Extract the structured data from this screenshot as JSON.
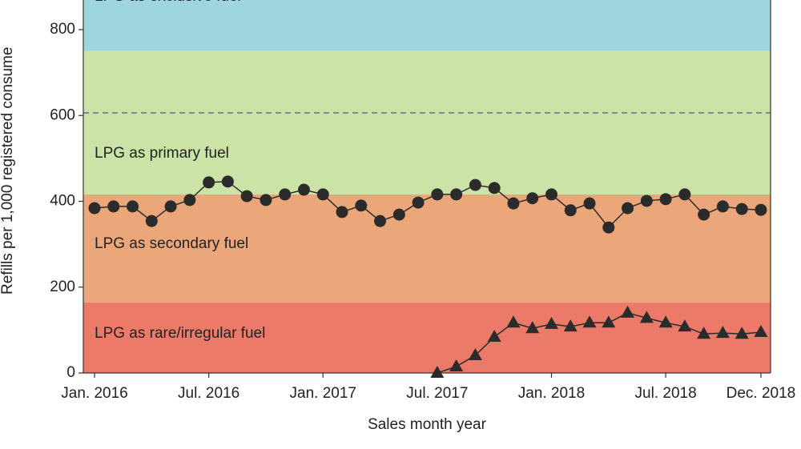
{
  "chart_data": {
    "type": "line",
    "x_label": "Sales month year",
    "y_label": "Refills per 1,000 registered consume",
    "categories": [
      "Jan. 2016",
      null,
      null,
      null,
      null,
      null,
      "Jul. 2016",
      null,
      null,
      null,
      null,
      null,
      "Jan. 2017",
      null,
      null,
      null,
      null,
      null,
      "Jul. 2017",
      null,
      null,
      null,
      null,
      null,
      "Jan. 2018",
      null,
      null,
      null,
      null,
      null,
      "Jul. 2018",
      null,
      null,
      null,
      null,
      "Dec. 2018"
    ],
    "series": [
      {
        "marker": "circle",
        "color": "#2b2b2b",
        "values": [
          384,
          388,
          388,
          354,
          388,
          403,
          444,
          446,
          412,
          403,
          416,
          427,
          416,
          375,
          390,
          354,
          369,
          397,
          416,
          416,
          438,
          431,
          395,
          407,
          416,
          379,
          395,
          339,
          384,
          401,
          405,
          416,
          369,
          388,
          382,
          380
        ]
      },
      {
        "marker": "triangle",
        "color": "#2b2b2b",
        "values": [
          null,
          null,
          null,
          null,
          null,
          null,
          null,
          null,
          null,
          null,
          null,
          null,
          null,
          null,
          null,
          null,
          null,
          null,
          0,
          15,
          41,
          84,
          117,
          104,
          114,
          108,
          117,
          117,
          140,
          128,
          117,
          108,
          91,
          93,
          91,
          95
        ]
      }
    ],
    "bands": [
      {
        "label": "LPG as rare/irregular fuel",
        "from": 0,
        "to": 164,
        "color": "#ec7a68"
      },
      {
        "label": "LPG as secondary fuel",
        "from": 164,
        "to": 416,
        "color": "#eba77a"
      },
      {
        "label": "LPG as primary fuel",
        "from": 416,
        "to": 750,
        "color": "#cce3a8"
      },
      {
        "label": "LPG as exclusive fuel",
        "from": 750,
        "color": "#9dd6df"
      }
    ],
    "reference_line": 606,
    "ylim": [
      0,
      869
    ],
    "yticks": [
      0,
      200,
      400,
      600,
      800
    ]
  }
}
